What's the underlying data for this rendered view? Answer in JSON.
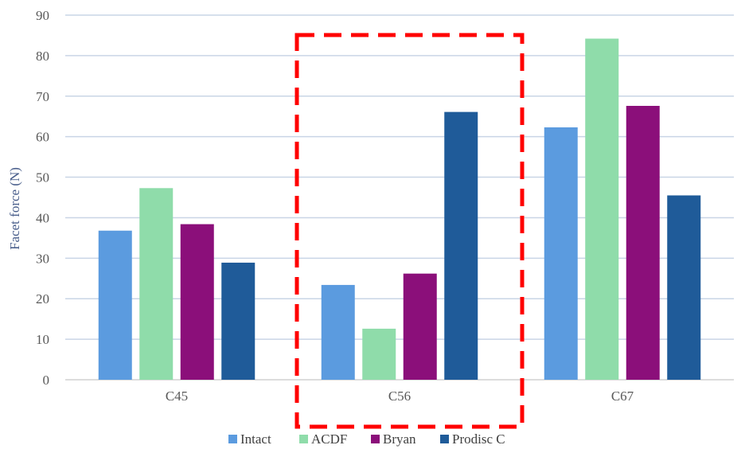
{
  "chart_data": {
    "type": "bar",
    "categories": [
      "C45",
      "C56",
      "C67"
    ],
    "series": [
      {
        "name": "Intact",
        "color": "#5b9bdf",
        "values": [
          36.8,
          23.4,
          62.3
        ]
      },
      {
        "name": "ACDF",
        "color": "#8fdcaa",
        "values": [
          47.3,
          12.6,
          84.2
        ]
      },
      {
        "name": "Bryan",
        "color": "#8b0f7a",
        "values": [
          38.4,
          26.2,
          67.6
        ]
      },
      {
        "name": "Prodisc C",
        "color": "#1f5b99",
        "values": [
          28.9,
          66.1,
          45.5
        ]
      }
    ],
    "ylabel": "Facet force (N)",
    "ylim": [
      0,
      90
    ],
    "yticks": [
      0,
      10,
      20,
      30,
      40,
      50,
      60,
      70,
      80,
      90
    ],
    "grid": true,
    "legend_position": "bottom",
    "highlight": {
      "category": "C56",
      "style": "dashed",
      "color": "#ff0000"
    }
  }
}
